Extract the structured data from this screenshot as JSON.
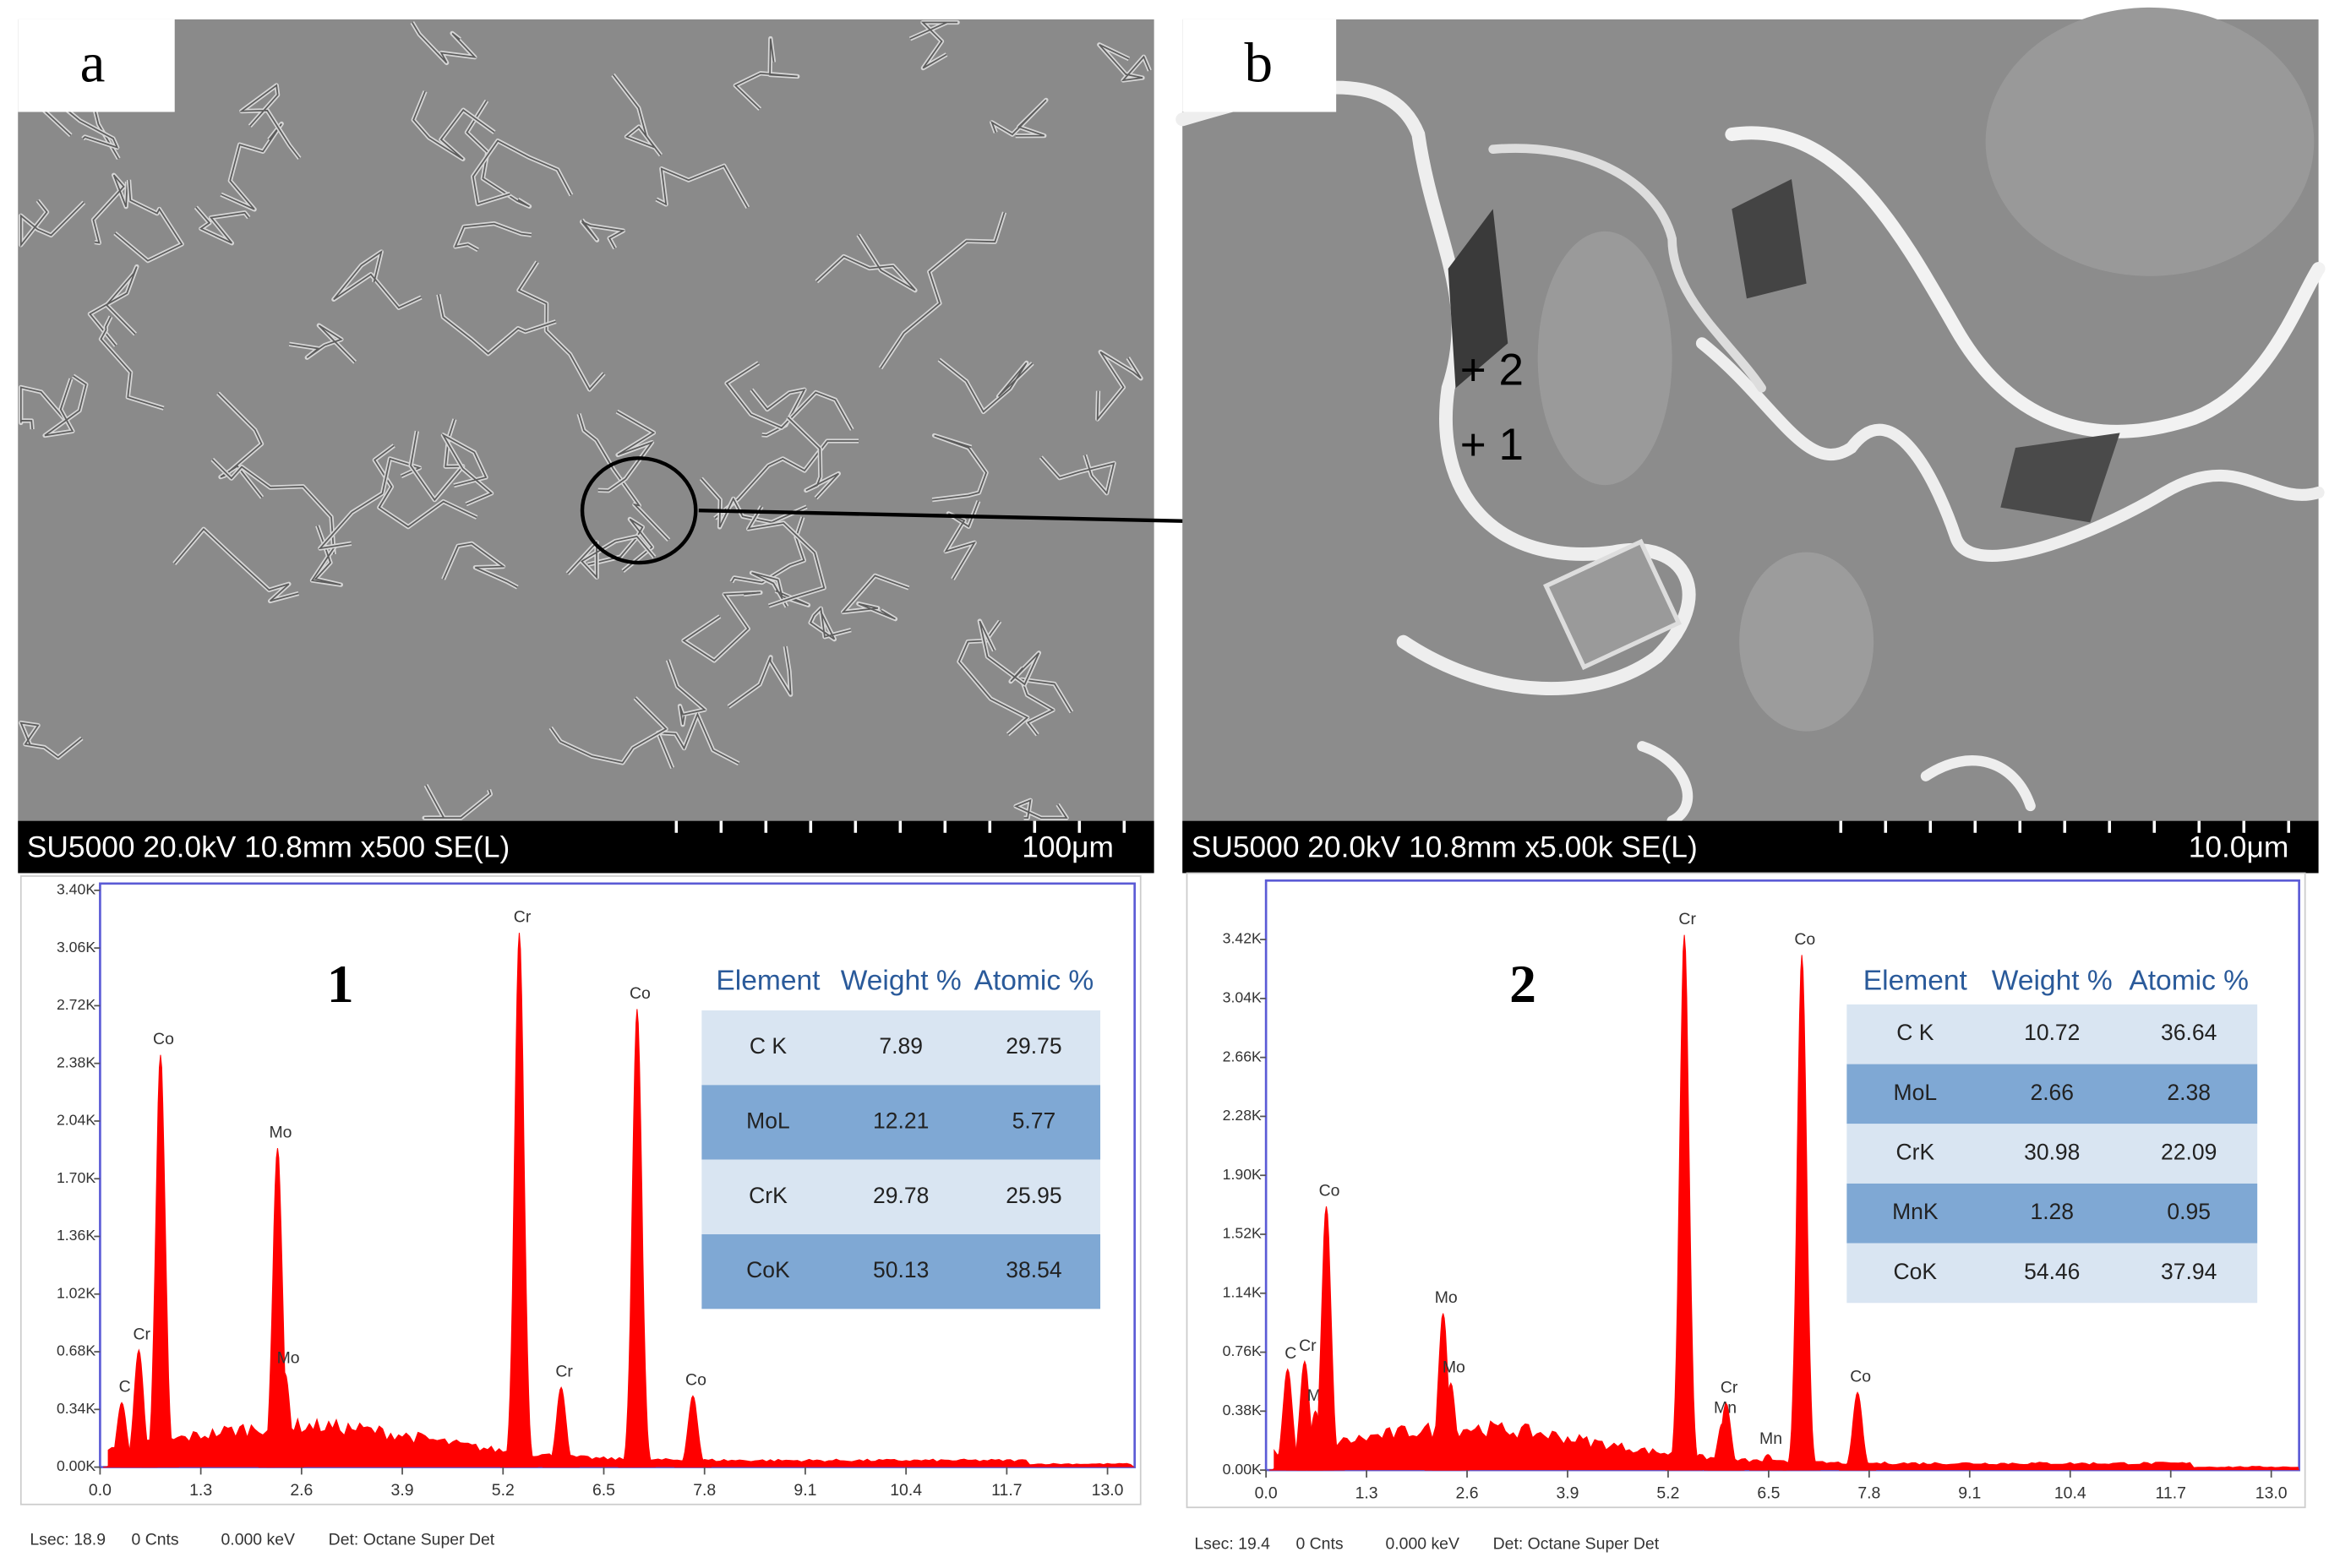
{
  "panels": [
    {
      "label": "a",
      "info": "SU5000 20.0kV 10.8mm x500 SE(L)",
      "scale": "100μm"
    },
    {
      "label": "b",
      "info": "SU5000 20.0kV 10.8mm x5.00k SE(L)",
      "scale": "10.0μm",
      "points": [
        "+ 2",
        "+ 1"
      ]
    }
  ],
  "chart_data": [
    {
      "type": "area",
      "title": "1",
      "color": "#ff0000",
      "xlim": [
        0,
        13.35
      ],
      "ylim": [
        0,
        3440
      ],
      "xticks": [
        {
          "value": 0,
          "label": "0.0"
        },
        {
          "value": 1.3,
          "label": "1.3"
        },
        {
          "value": 2.6,
          "label": "2.6"
        },
        {
          "value": 3.9,
          "label": "3.9"
        },
        {
          "value": 5.2,
          "label": "5.2"
        },
        {
          "value": 6.5,
          "label": "6.5"
        },
        {
          "value": 7.8,
          "label": "7.8"
        },
        {
          "value": 9.1,
          "label": "9.1"
        },
        {
          "value": 10.4,
          "label": "10.4"
        },
        {
          "value": 11.7,
          "label": "11.7"
        },
        {
          "value": 13,
          "label": "13.0"
        }
      ],
      "yticks": [
        {
          "value": 0,
          "label": "0.00K"
        },
        {
          "value": 340,
          "label": "0.34K"
        },
        {
          "value": 680,
          "label": "0.68K"
        },
        {
          "value": 1020,
          "label": "1.02K"
        },
        {
          "value": 1360,
          "label": "1.36K"
        },
        {
          "value": 1700,
          "label": "1.70K"
        },
        {
          "value": 2040,
          "label": "2.04K"
        },
        {
          "value": 2380,
          "label": "2.38K"
        },
        {
          "value": 2720,
          "label": "2.72K"
        },
        {
          "value": 3060,
          "label": "3.06K"
        },
        {
          "value": 3400,
          "label": "3.40K"
        }
      ],
      "x": [
        0.28,
        0.5,
        0.78,
        2.29,
        2.39,
        5.41,
        5.95,
        6.93,
        7.65
      ],
      "values": [
        380,
        690,
        2430,
        1880,
        550,
        3150,
        470,
        2700,
        420
      ],
      "peak_labels": [
        "C",
        "Cr",
        "Co",
        "Mo",
        "Mo",
        "Cr",
        "Cr",
        "Co",
        "Co"
      ],
      "table": {
        "header": [
          "Element",
          "Weight %",
          "Atomic %"
        ],
        "rows": [
          [
            "C K",
            "7.89",
            "29.75"
          ],
          [
            "MoL",
            "12.21",
            "5.77"
          ],
          [
            "CrK",
            "29.78",
            "25.95"
          ],
          [
            "CoK",
            "50.13",
            "38.54"
          ]
        ]
      },
      "footer": [
        "Lsec: 18.9",
        "0 Cnts",
        "0.000 keV",
        "Det: Octane Super Det"
      ]
    },
    {
      "type": "area",
      "title": "2",
      "color": "#ff0000",
      "xlim": [
        0,
        13.36
      ],
      "ylim": [
        0,
        3800
      ],
      "xticks": [
        {
          "value": 0,
          "label": "0.0"
        },
        {
          "value": 1.3,
          "label": "1.3"
        },
        {
          "value": 2.6,
          "label": "2.6"
        },
        {
          "value": 3.9,
          "label": "3.9"
        },
        {
          "value": 5.2,
          "label": "5.2"
        },
        {
          "value": 6.5,
          "label": "6.5"
        },
        {
          "value": 7.8,
          "label": "7.8"
        },
        {
          "value": 9.1,
          "label": "9.1"
        },
        {
          "value": 10.4,
          "label": "10.4"
        },
        {
          "value": 11.7,
          "label": "11.7"
        },
        {
          "value": 13,
          "label": "13.0"
        }
      ],
      "yticks": [
        {
          "value": 0,
          "label": "0.00K"
        },
        {
          "value": 380,
          "label": "0.38K"
        },
        {
          "value": 760,
          "label": "0.76K"
        },
        {
          "value": 1140,
          "label": "1.14K"
        },
        {
          "value": 1520,
          "label": "1.52K"
        },
        {
          "value": 1900,
          "label": "1.90K"
        },
        {
          "value": 2280,
          "label": "2.28K"
        },
        {
          "value": 2660,
          "label": "2.66K"
        },
        {
          "value": 3040,
          "label": "3.04K"
        },
        {
          "value": 3420,
          "label": "3.42K"
        }
      ],
      "x": [
        0.28,
        0.5,
        0.64,
        0.78,
        2.29,
        2.39,
        5.41,
        5.9,
        5.95,
        6.49,
        6.93,
        7.65
      ],
      "values": [
        650,
        700,
        380,
        1700,
        1010,
        560,
        3450,
        300,
        430,
        100,
        3320,
        500
      ],
      "peak_labels": [
        "C",
        "Cr",
        "Mn",
        "Co",
        "Mo",
        "Mo",
        "Cr",
        "Mn",
        "Cr",
        "Mn",
        "Co",
        "Co"
      ],
      "table": {
        "header": [
          "Element",
          "Weight %",
          "Atomic %"
        ],
        "rows": [
          [
            "C K",
            "10.72",
            "36.64"
          ],
          [
            "MoL",
            "2.66",
            "2.38"
          ],
          [
            "CrK",
            "30.98",
            "22.09"
          ],
          [
            "MnK",
            "1.28",
            "0.95"
          ],
          [
            "CoK",
            "54.46",
            "37.94"
          ]
        ]
      },
      "footer": [
        "Lsec: 19.4",
        "0 Cnts",
        "0.000 keV",
        "Det: Octane Super Det"
      ]
    }
  ]
}
